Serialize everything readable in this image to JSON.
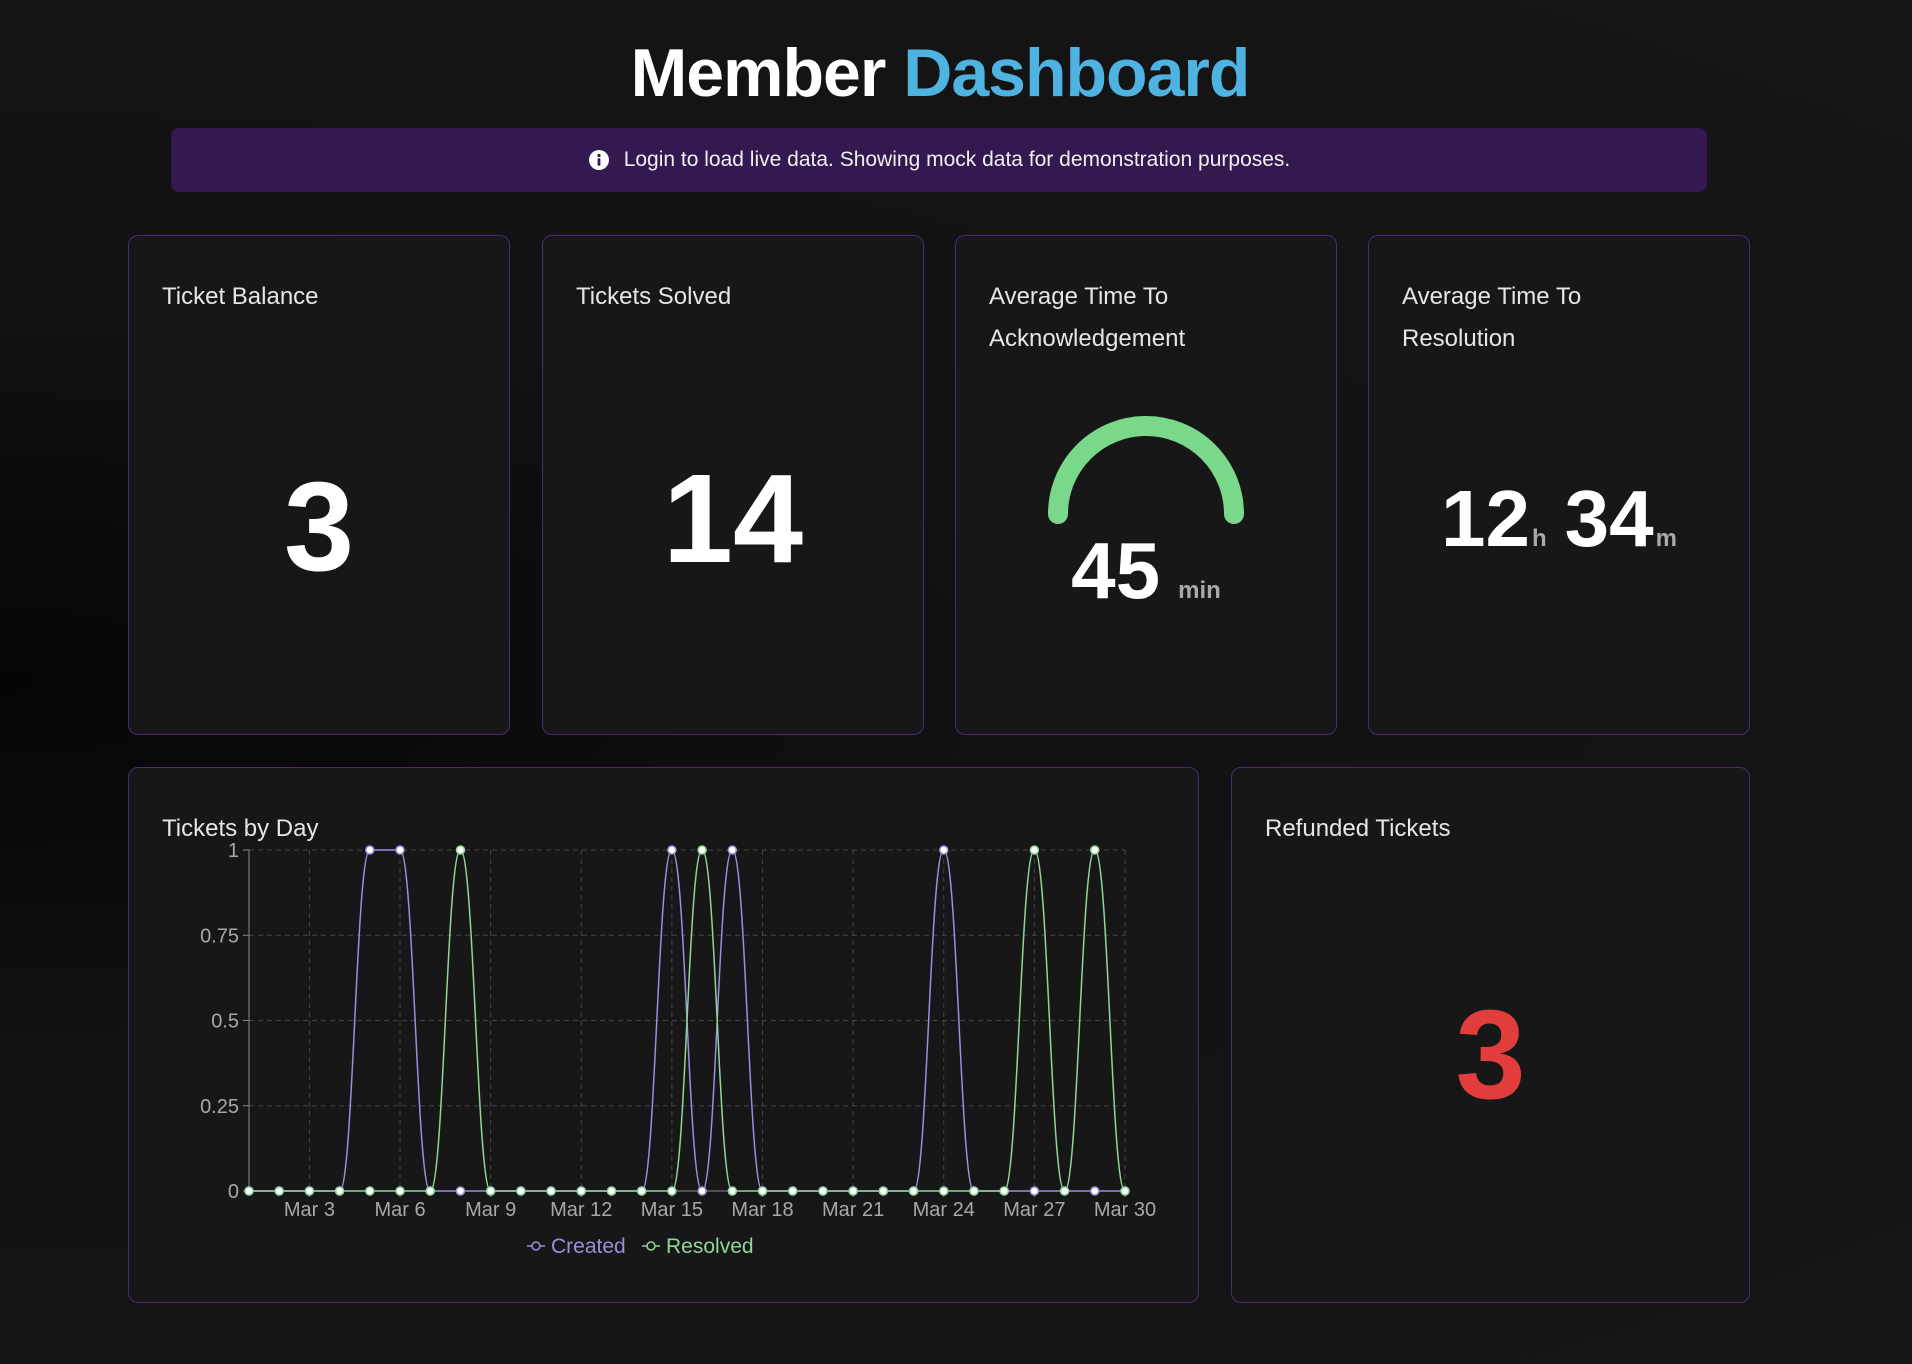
{
  "header": {
    "title_main": "Member",
    "title_accent": "Dashboard",
    "accent_color": "#4fb3e2"
  },
  "banner": {
    "icon": "info-icon",
    "text": "Login to load live data. Showing mock data for demonstration purposes."
  },
  "cards": {
    "ticket_balance": {
      "title": "Ticket Balance",
      "value": "3"
    },
    "tickets_solved": {
      "title": "Tickets Solved",
      "value": "14"
    },
    "avg_ack": {
      "title_line1": "Average Time To",
      "title_line2": "Acknowledgement",
      "value": "45",
      "unit": "min",
      "gauge_fraction": 1.0,
      "gauge_color": "#7ad88a"
    },
    "avg_resolution": {
      "title_line1": "Average Time To",
      "title_line2": "Resolution",
      "hours": "12",
      "hours_unit": "h",
      "minutes": "34",
      "minutes_unit": "m"
    },
    "refunded": {
      "title": "Refunded Tickets",
      "value": "3",
      "value_color": "#e23d3d"
    },
    "tickets_by_day": {
      "title": "Tickets by Day"
    }
  },
  "chart_data": {
    "type": "line",
    "x": [
      "Mar 1",
      "Mar 2",
      "Mar 3",
      "Mar 4",
      "Mar 5",
      "Mar 6",
      "Mar 7",
      "Mar 8",
      "Mar 9",
      "Mar 10",
      "Mar 11",
      "Mar 12",
      "Mar 13",
      "Mar 14",
      "Mar 15",
      "Mar 16",
      "Mar 17",
      "Mar 18",
      "Mar 19",
      "Mar 20",
      "Mar 21",
      "Mar 22",
      "Mar 23",
      "Mar 24",
      "Mar 25",
      "Mar 26",
      "Mar 27",
      "Mar 28",
      "Mar 29",
      "Mar 30"
    ],
    "x_tick_labels": [
      "Mar 3",
      "Mar 6",
      "Mar 9",
      "Mar 12",
      "Mar 15",
      "Mar 18",
      "Mar 21",
      "Mar 24",
      "Mar 27",
      "Mar 30"
    ],
    "ylim": [
      0,
      1
    ],
    "y_ticks": [
      "0",
      "0.25",
      "0.5",
      "0.75",
      "1"
    ],
    "grid": true,
    "legend_position": "bottom",
    "series": [
      {
        "name": "Created",
        "color": "#9a8fe0",
        "values": [
          0,
          0,
          0,
          0,
          1,
          1,
          0,
          0,
          0,
          0,
          0,
          0,
          0,
          0,
          1,
          0,
          1,
          0,
          0,
          0,
          0,
          0,
          0,
          1,
          0,
          0,
          0,
          0,
          0,
          0
        ]
      },
      {
        "name": "Resolved",
        "color": "#8fd69a",
        "values": [
          0,
          0,
          0,
          0,
          0,
          0,
          0,
          1,
          0,
          0,
          0,
          0,
          0,
          0,
          0,
          1,
          0,
          0,
          0,
          0,
          0,
          0,
          0,
          0,
          0,
          0,
          1,
          0,
          1,
          0
        ]
      }
    ]
  }
}
